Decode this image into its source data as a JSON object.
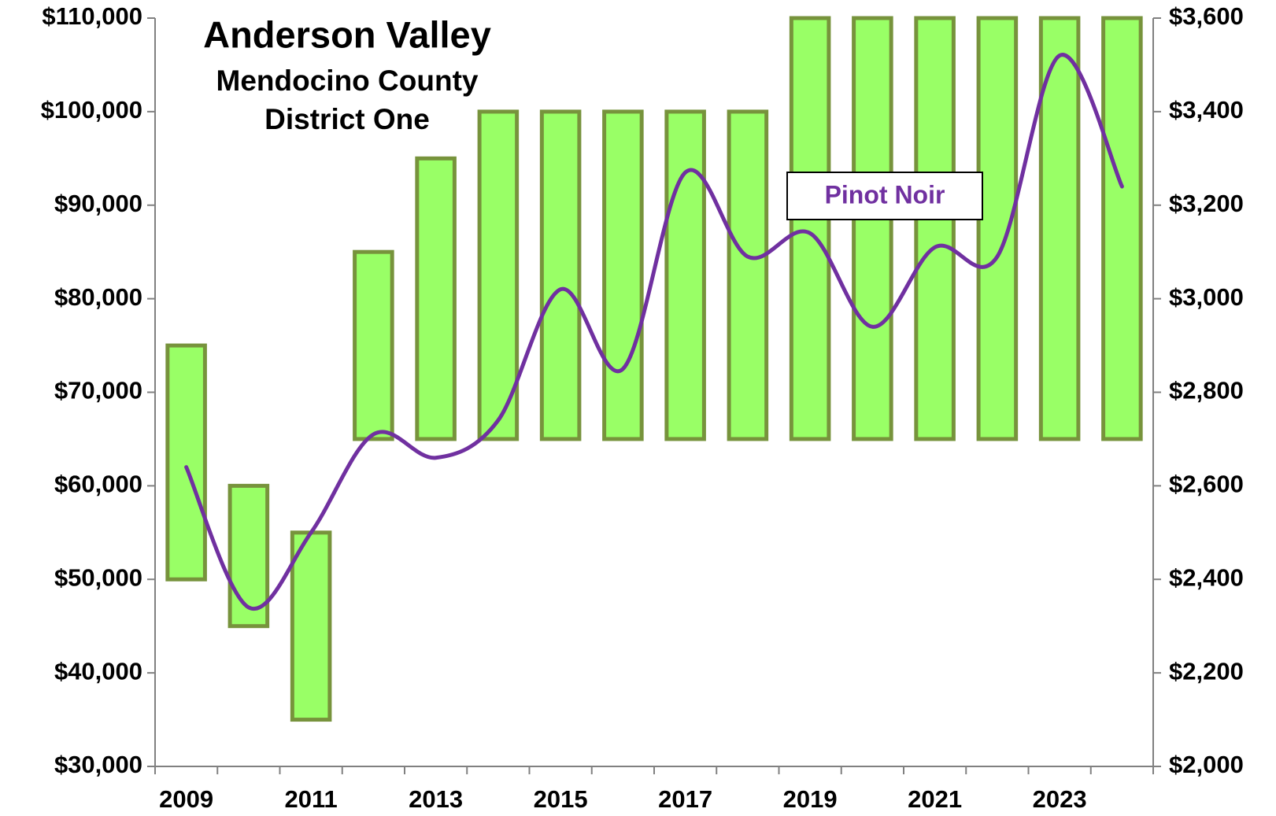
{
  "chart_data": {
    "type": "bar",
    "title": "Anderson Valley",
    "subtitle": [
      "Mendocino County",
      "District One"
    ],
    "categories": [
      "2009",
      null,
      "2011",
      null,
      "2013",
      null,
      "2015",
      null,
      "2017",
      null,
      "2019",
      null,
      "2021",
      null,
      "2023",
      null
    ],
    "series": [
      {
        "type": "range_bar",
        "color": "#99ff66",
        "edge_color": "#77933c",
        "low": [
          50000,
          45000,
          35000,
          65000,
          65000,
          65000,
          65000,
          65000,
          65000,
          65000,
          65000,
          65000,
          65000,
          65000,
          65000,
          65000
        ],
        "high": [
          75000,
          60000,
          55000,
          85000,
          95000,
          100000,
          100000,
          100000,
          100000,
          100000,
          110000,
          110000,
          110000,
          110000,
          110000,
          110000
        ]
      },
      {
        "type": "line",
        "name": "Pinot Noir",
        "color": "#7030a0",
        "axis": "y2",
        "smooth": true,
        "values": [
          2640,
          2340,
          2500,
          2710,
          2660,
          2740,
          3020,
          2850,
          3270,
          3090,
          3140,
          2940,
          3110,
          3090,
          3520,
          3240
        ]
      }
    ],
    "ylim": [
      30000,
      110000
    ],
    "yticks": [
      {
        "value": 30000,
        "label": "$30,000"
      },
      {
        "value": 40000,
        "label": "$40,000"
      },
      {
        "value": 50000,
        "label": "$50,000"
      },
      {
        "value": 60000,
        "label": "$60,000"
      },
      {
        "value": 70000,
        "label": "$70,000"
      },
      {
        "value": 80000,
        "label": "$80,000"
      },
      {
        "value": 90000,
        "label": "$90,000"
      },
      {
        "value": 100000,
        "label": "$100,000"
      },
      {
        "value": 110000,
        "label": "$110,000"
      }
    ],
    "y2lim": [
      2000,
      3600
    ],
    "y2ticks": [
      {
        "value": 2000,
        "label": "$2,000"
      },
      {
        "value": 2200,
        "label": "$2,200"
      },
      {
        "value": 2400,
        "label": "$2,400"
      },
      {
        "value": 2600,
        "label": "$2,600"
      },
      {
        "value": 2800,
        "label": "$2,800"
      },
      {
        "value": 3000,
        "label": "$3,000"
      },
      {
        "value": 3200,
        "label": "$3,200"
      },
      {
        "value": 3400,
        "label": "$3,400"
      },
      {
        "value": 3600,
        "label": "$3,600"
      }
    ]
  }
}
